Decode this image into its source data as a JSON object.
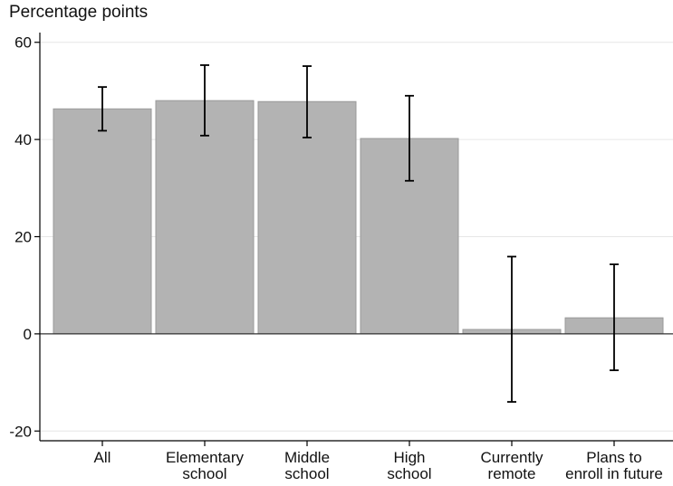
{
  "chart_data": {
    "type": "bar",
    "ylabel": "Percentage points",
    "categories": [
      [
        "All"
      ],
      [
        "Elementary",
        "school"
      ],
      [
        "Middle",
        "school"
      ],
      [
        "High",
        "school"
      ],
      [
        "Currently",
        "remote"
      ],
      [
        "Plans to",
        "enroll in future"
      ]
    ],
    "values": [
      46.3,
      48.0,
      47.8,
      40.2,
      0.9,
      3.3
    ],
    "ci_low": [
      41.8,
      40.8,
      40.4,
      31.5,
      -14.0,
      -7.5
    ],
    "ci_high": [
      50.8,
      55.3,
      55.1,
      49.0,
      15.9,
      14.3
    ],
    "ylim": [
      -22,
      62
    ],
    "yticks": [
      -20,
      0,
      20,
      40,
      60
    ],
    "grid": true,
    "colors": {
      "bar": "#b3b3b3",
      "bar_edge": "#9a9a9a",
      "grid": "#e6e6e6",
      "axis": "#000000",
      "errorbar": "#000000"
    }
  }
}
